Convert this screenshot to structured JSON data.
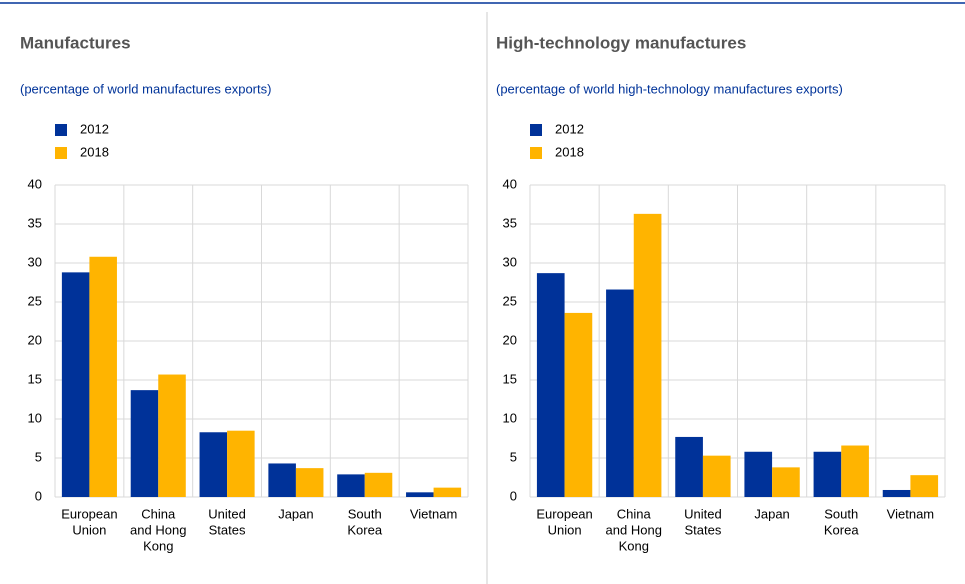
{
  "chart_data": [
    {
      "type": "bar",
      "title": "Manufactures",
      "subtitle": "(percentage of world manufactures exports)",
      "categories": [
        [
          "European",
          "Union"
        ],
        [
          "China",
          "and Hong",
          "Kong"
        ],
        [
          "United",
          "States"
        ],
        [
          "Japan"
        ],
        [
          "South",
          "Korea"
        ],
        [
          "Vietnam"
        ]
      ],
      "series": [
        {
          "name": "2012",
          "color": "#003299",
          "values": [
            28.8,
            13.7,
            8.3,
            4.3,
            2.9,
            0.6
          ]
        },
        {
          "name": "2018",
          "color": "#ffb400",
          "values": [
            30.8,
            15.7,
            8.5,
            3.7,
            3.1,
            1.2
          ]
        }
      ],
      "ylim": [
        0,
        40
      ],
      "yticks": [
        0,
        5,
        10,
        15,
        20,
        25,
        30,
        35,
        40
      ],
      "grid": true,
      "legend": "top-left"
    },
    {
      "type": "bar",
      "title": "High-technology manufactures",
      "subtitle": "(percentage of world high-technology manufactures exports)",
      "categories": [
        [
          "European",
          "Union"
        ],
        [
          "China",
          "and Hong",
          "Kong"
        ],
        [
          "United",
          "States"
        ],
        [
          "Japan"
        ],
        [
          "South",
          "Korea"
        ],
        [
          "Vietnam"
        ]
      ],
      "series": [
        {
          "name": "2012",
          "color": "#003299",
          "values": [
            28.7,
            26.6,
            7.7,
            5.8,
            5.8,
            0.9
          ]
        },
        {
          "name": "2018",
          "color": "#ffb400",
          "values": [
            23.6,
            36.3,
            5.3,
            3.8,
            6.6,
            2.8
          ]
        }
      ],
      "ylim": [
        0,
        40
      ],
      "yticks": [
        0,
        5,
        10,
        15,
        20,
        25,
        30,
        35,
        40
      ],
      "grid": true,
      "legend": "top-left"
    }
  ]
}
